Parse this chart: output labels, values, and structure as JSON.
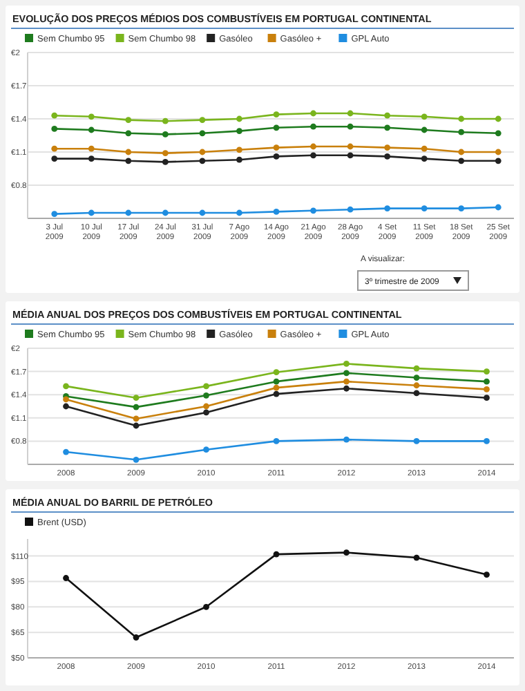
{
  "chart_data": [
    {
      "type": "line",
      "title": "EVOLUÇÃO DOS PREÇOS MÉDIOS DOS COMBUSTÍVEIS EM PORTUGAL CONTINENTAL",
      "categories": [
        "3 Jul 2009",
        "10 Jul 2009",
        "17 Jul 2009",
        "24 Jul 2009",
        "31 Jul 2009",
        "7 Ago 2009",
        "14 Ago 2009",
        "21 Ago 2009",
        "28 Ago 2009",
        "4 Set 2009",
        "11 Set 2009",
        "18 Set 2009",
        "25 Set 2009"
      ],
      "series": [
        {
          "name": "Sem Chumbo 95",
          "color": "#1e7b1e",
          "values": [
            1.31,
            1.3,
            1.27,
            1.26,
            1.27,
            1.29,
            1.32,
            1.33,
            1.33,
            1.32,
            1.3,
            1.28,
            1.27
          ]
        },
        {
          "name": "Sem Chumbo 98",
          "color": "#7ab51d",
          "values": [
            1.43,
            1.42,
            1.39,
            1.38,
            1.39,
            1.4,
            1.44,
            1.45,
            1.45,
            1.43,
            1.42,
            1.4,
            1.4
          ]
        },
        {
          "name": "Gasóleo",
          "color": "#222222",
          "values": [
            1.04,
            1.04,
            1.02,
            1.01,
            1.02,
            1.03,
            1.06,
            1.07,
            1.07,
            1.06,
            1.04,
            1.02,
            1.02
          ]
        },
        {
          "name": "Gasóleo +",
          "color": "#c9800c",
          "values": [
            1.13,
            1.13,
            1.1,
            1.09,
            1.1,
            1.12,
            1.14,
            1.15,
            1.15,
            1.14,
            1.13,
            1.1,
            1.1
          ]
        },
        {
          "name": "GPL Auto",
          "color": "#1f8de0",
          "values": [
            0.54,
            0.55,
            0.55,
            0.55,
            0.55,
            0.55,
            0.56,
            0.57,
            0.58,
            0.59,
            0.59,
            0.59,
            0.6
          ]
        }
      ],
      "ylim": [
        0.5,
        2
      ],
      "yticks": [
        {
          "value": 0.8,
          "label": "€0.8"
        },
        {
          "value": 1.1,
          "label": "€1.1"
        },
        {
          "value": 1.4,
          "label": "€1.4"
        },
        {
          "value": 1.7,
          "label": "€1.7"
        },
        {
          "value": 2,
          "label": "€2"
        }
      ],
      "grid": "y",
      "legend": "top left",
      "marker": "circle",
      "line_style": "solid",
      "annotations": [
        "A visualizar:",
        "3º trimestre de 2009"
      ]
    },
    {
      "type": "line",
      "title": "MÉDIA ANUAL DOS PREÇOS DOS COMBUSTÍVEIS EM PORTUGAL CONTINENTAL",
      "categories": [
        "2008",
        "2009",
        "2010",
        "2011",
        "2012",
        "2013",
        "2014"
      ],
      "series": [
        {
          "name": "Sem Chumbo 95",
          "color": "#1e7b1e",
          "values": [
            1.38,
            1.24,
            1.39,
            1.57,
            1.68,
            1.62,
            1.57
          ]
        },
        {
          "name": "Sem Chumbo 98",
          "color": "#7ab51d",
          "values": [
            1.51,
            1.36,
            1.51,
            1.69,
            1.8,
            1.74,
            1.7
          ]
        },
        {
          "name": "Gasóleo",
          "color": "#222222",
          "values": [
            1.25,
            1.0,
            1.17,
            1.41,
            1.48,
            1.42,
            1.36
          ]
        },
        {
          "name": "Gasóleo +",
          "color": "#c9800c",
          "values": [
            1.34,
            1.09,
            1.25,
            1.49,
            1.57,
            1.52,
            1.47
          ]
        },
        {
          "name": "GPL Auto",
          "color": "#1f8de0",
          "values": [
            0.66,
            0.56,
            0.69,
            0.8,
            0.82,
            0.8,
            0.8
          ]
        }
      ],
      "ylim": [
        0.5,
        2
      ],
      "yticks": [
        {
          "value": 0.8,
          "label": "€0.8"
        },
        {
          "value": 1.1,
          "label": "€1.1"
        },
        {
          "value": 1.4,
          "label": "€1.4"
        },
        {
          "value": 1.7,
          "label": "€1.7"
        },
        {
          "value": 2,
          "label": "€2"
        }
      ],
      "grid": "y",
      "legend": "top left",
      "marker": "circle",
      "line_style": "solid"
    },
    {
      "type": "line",
      "title": "MÉDIA ANUAL DO BARRIL DE PETRÓLEO",
      "categories": [
        "2008",
        "2009",
        "2010",
        "2011",
        "2012",
        "2013",
        "2014"
      ],
      "series": [
        {
          "name": "Brent (USD)",
          "color": "#111111",
          "values": [
            97,
            62,
            80,
            111,
            112,
            109,
            99
          ]
        }
      ],
      "ylim": [
        50,
        120
      ],
      "yticks": [
        {
          "value": 50,
          "label": "$50"
        },
        {
          "value": 65,
          "label": "$65"
        },
        {
          "value": 80,
          "label": "$80"
        },
        {
          "value": 95,
          "label": "$95"
        },
        {
          "value": 110,
          "label": "$110"
        }
      ],
      "grid": "y",
      "legend": "top left",
      "marker": "circle",
      "line_style": "solid"
    }
  ]
}
